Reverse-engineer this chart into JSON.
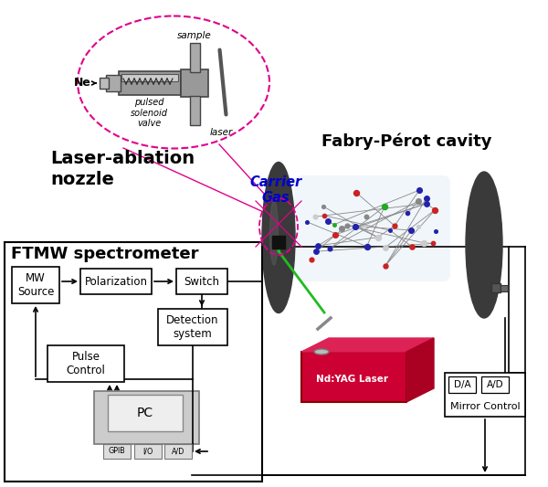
{
  "bg_color": "#ffffff",
  "label_laser_ablation": "Laser-ablation\nnozzle",
  "label_fabry_perot": "Fabry-Pérot cavity",
  "label_ftmw": "FTMW spectrometer",
  "label_carrier_gas": "Carrier\nGas",
  "label_sample": "sample",
  "label_ne": "Ne",
  "label_pulsed": "pulsed\nsolenoid\nvalve",
  "label_laser_inset": "laser",
  "box_mw": "MW\nSource",
  "box_pol": "Polarization",
  "box_sw": "Switch",
  "box_det": "Detection\nsystem",
  "box_pulse": "Pulse\nControl",
  "box_pc": "PC",
  "sub_labels": [
    "GPIB",
    "I/O",
    "A/D"
  ],
  "label_da": "D/A",
  "label_ad": "A/D",
  "label_mirror_ctrl": "Mirror Control",
  "pink": "#e0008a",
  "dark_gray": "#3a3a3a",
  "mid_gray": "#888888",
  "light_gray": "#bbbbbb",
  "laser_red": "#cc0033",
  "green": "#22bb22",
  "blue_text": "#0000cc"
}
